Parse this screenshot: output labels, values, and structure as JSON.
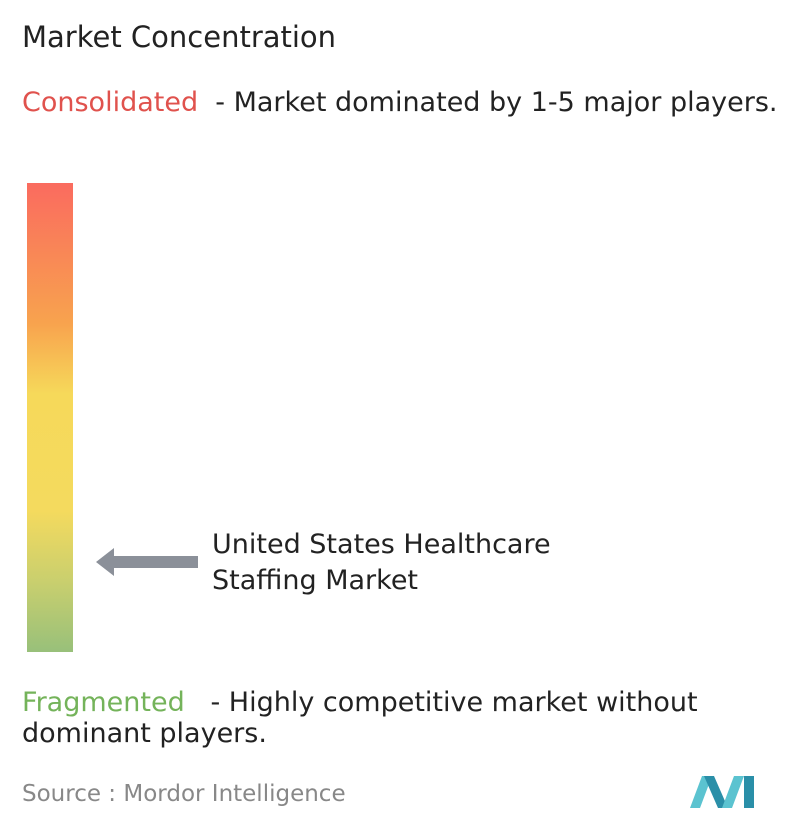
{
  "title": "Market Concentration",
  "consolidated": {
    "label": "Consolidated",
    "description": "- Market dominated by 1-5 major players."
  },
  "marker": {
    "label": "United States Healthcare Staffing Market"
  },
  "fragmented": {
    "label": "Fragmented",
    "description": "- Highly competitive market without dominant players."
  },
  "source": {
    "label": "Source :",
    "name": "Mordor Intelligence"
  }
}
